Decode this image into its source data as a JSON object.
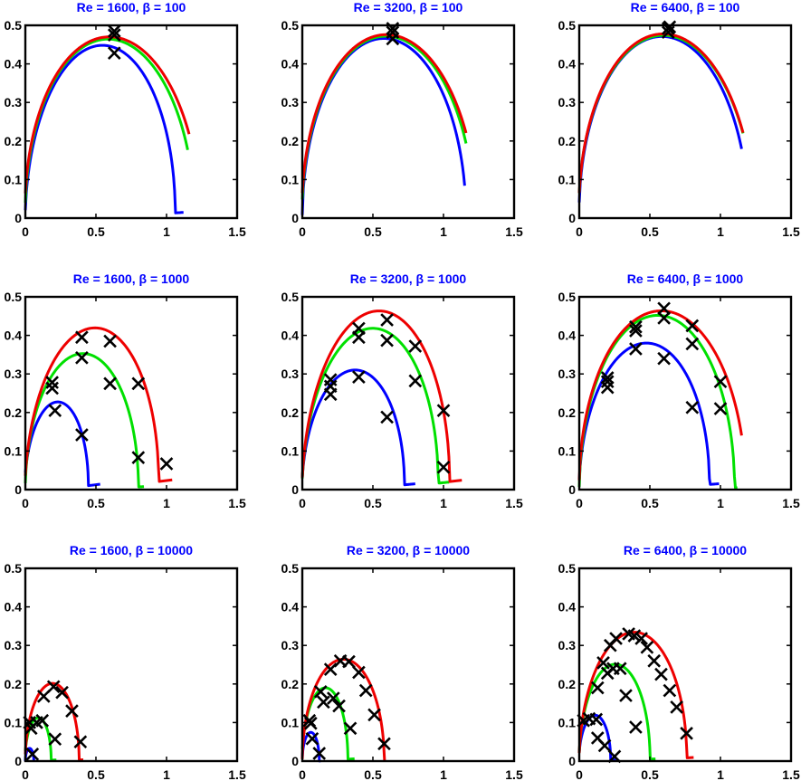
{
  "figure": {
    "colors": {
      "blue": "#0000ff",
      "green": "#00e000",
      "red": "#ee0000",
      "title": "#0000ff",
      "marker": "#000000"
    },
    "x_ticks": [
      "0",
      "0.5",
      "1",
      "1.5"
    ],
    "y_ticks": [
      "0",
      "0.1",
      "0.2",
      "0.3",
      "0.4",
      "0.5"
    ]
  },
  "chart_data": [
    {
      "type": "line",
      "title": "Re = 1600, β = 100",
      "xlim": [
        0,
        1.5
      ],
      "ylim": [
        0,
        0.5
      ],
      "grid": false,
      "series": [
        {
          "color": "blue",
          "peak_x": 0.53,
          "peak_y": 0.437,
          "root": 1.12
        },
        {
          "color": "green",
          "peak_x": 0.6,
          "peak_y": 0.475,
          "root": 1.15
        },
        {
          "color": "red",
          "peak_x": 0.62,
          "peak_y": 0.488,
          "root": 1.16
        }
      ],
      "markers": [
        [
          0.63,
          0.428
        ],
        [
          0.63,
          0.475
        ],
        [
          0.63,
          0.485
        ]
      ]
    },
    {
      "type": "line",
      "title": "Re = 3200, β = 100",
      "xlim": [
        0,
        1.5
      ],
      "ylim": [
        0,
        0.5
      ],
      "grid": false,
      "series": [
        {
          "color": "blue",
          "peak_x": 0.58,
          "peak_y": 0.468,
          "root": 1.15
        },
        {
          "color": "green",
          "peak_x": 0.61,
          "peak_y": 0.485,
          "root": 1.16
        },
        {
          "color": "red",
          "peak_x": 0.62,
          "peak_y": 0.494,
          "root": 1.16
        }
      ],
      "markers": [
        [
          0.64,
          0.465
        ],
        [
          0.64,
          0.482
        ],
        [
          0.64,
          0.492
        ]
      ]
    },
    {
      "type": "line",
      "title": "Re = 6400, β = 100",
      "xlim": [
        0,
        1.5
      ],
      "ylim": [
        0,
        0.5
      ],
      "grid": false,
      "series": [
        {
          "color": "blue",
          "peak_x": 0.6,
          "peak_y": 0.482,
          "root": 1.15
        },
        {
          "color": "green",
          "peak_x": 0.62,
          "peak_y": 0.492,
          "root": 1.16
        },
        {
          "color": "red",
          "peak_x": 0.62,
          "peak_y": 0.496,
          "root": 1.16
        }
      ],
      "markers": [
        [
          0.63,
          0.482
        ],
        [
          0.63,
          0.492
        ],
        [
          0.64,
          0.496
        ]
      ]
    },
    {
      "type": "line",
      "title": "Re = 1600, β = 1000",
      "xlim": [
        0,
        1.5
      ],
      "ylim": [
        0,
        0.5
      ],
      "grid": false,
      "series": [
        {
          "color": "blue",
          "peak_x": 0.22,
          "peak_y": 0.213,
          "root": 0.53
        },
        {
          "color": "green",
          "peak_x": 0.4,
          "peak_y": 0.345,
          "root": 0.84
        },
        {
          "color": "red",
          "peak_x": 0.47,
          "peak_y": 0.402,
          "root": 1.04
        }
      ],
      "markers": [
        [
          0.19,
          0.263
        ],
        [
          0.19,
          0.278
        ],
        [
          0.21,
          0.205
        ],
        [
          0.4,
          0.395
        ],
        [
          0.4,
          0.342
        ],
        [
          0.4,
          0.142
        ],
        [
          0.6,
          0.385
        ],
        [
          0.6,
          0.275
        ],
        [
          0.8,
          0.275
        ],
        [
          0.8,
          0.083
        ],
        [
          1.0,
          0.067
        ]
      ]
    },
    {
      "type": "line",
      "title": "Re = 3200, β = 1000",
      "xlim": [
        0,
        1.5
      ],
      "ylim": [
        0,
        0.5
      ],
      "grid": false,
      "series": [
        {
          "color": "blue",
          "peak_x": 0.36,
          "peak_y": 0.297,
          "root": 0.8
        },
        {
          "color": "green",
          "peak_x": 0.48,
          "peak_y": 0.404,
          "root": 1.04
        },
        {
          "color": "red",
          "peak_x": 0.52,
          "peak_y": 0.447,
          "root": 1.13
        }
      ],
      "markers": [
        [
          0.2,
          0.285
        ],
        [
          0.2,
          0.268
        ],
        [
          0.2,
          0.247
        ],
        [
          0.4,
          0.418
        ],
        [
          0.4,
          0.395
        ],
        [
          0.4,
          0.292
        ],
        [
          0.6,
          0.44
        ],
        [
          0.6,
          0.387
        ],
        [
          0.6,
          0.188
        ],
        [
          0.8,
          0.372
        ],
        [
          0.8,
          0.282
        ],
        [
          1.0,
          0.205
        ],
        [
          1.0,
          0.058
        ]
      ]
    },
    {
      "type": "line",
      "title": "Re = 6400, β = 1000",
      "xlim": [
        0,
        1.5
      ],
      "ylim": [
        0,
        0.5
      ],
      "grid": false,
      "series": [
        {
          "color": "blue",
          "peak_x": 0.46,
          "peak_y": 0.368,
          "root": 0.99
        },
        {
          "color": "green",
          "peak_x": 0.55,
          "peak_y": 0.448,
          "root": 1.12
        },
        {
          "color": "red",
          "peak_x": 0.59,
          "peak_y": 0.47,
          "root": 1.15
        }
      ],
      "markers": [
        [
          0.2,
          0.29
        ],
        [
          0.2,
          0.28
        ],
        [
          0.2,
          0.265
        ],
        [
          0.4,
          0.422
        ],
        [
          0.4,
          0.412
        ],
        [
          0.4,
          0.365
        ],
        [
          0.6,
          0.47
        ],
        [
          0.6,
          0.445
        ],
        [
          0.6,
          0.34
        ],
        [
          0.8,
          0.425
        ],
        [
          0.8,
          0.378
        ],
        [
          0.8,
          0.213
        ],
        [
          1.0,
          0.28
        ],
        [
          1.0,
          0.21
        ]
      ]
    },
    {
      "type": "line",
      "title": "Re = 1600, β = 10000",
      "xlim": [
        0,
        1.5
      ],
      "ylim": [
        0,
        0.5
      ],
      "grid": false,
      "series": [
        {
          "color": "blue",
          "peak_x": 0.03,
          "peak_y": 0.033,
          "root": 0.06
        },
        {
          "color": "green",
          "peak_x": 0.09,
          "peak_y": 0.105,
          "root": 0.22
        },
        {
          "color": "red",
          "peak_x": 0.19,
          "peak_y": 0.195,
          "root": 0.41
        }
      ],
      "markers": [
        [
          0.03,
          0.1
        ],
        [
          0.04,
          0.085
        ],
        [
          0.05,
          0.018
        ],
        [
          0.08,
          0.1
        ],
        [
          0.12,
          0.105
        ],
        [
          0.13,
          0.168
        ],
        [
          0.2,
          0.193
        ],
        [
          0.21,
          0.057
        ],
        [
          0.26,
          0.178
        ],
        [
          0.33,
          0.13
        ],
        [
          0.39,
          0.05
        ]
      ]
    },
    {
      "type": "line",
      "title": "Re = 3200, β = 10000",
      "xlim": [
        0,
        1.5
      ],
      "ylim": [
        0,
        0.5
      ],
      "grid": false,
      "series": [
        {
          "color": "blue",
          "peak_x": 0.06,
          "peak_y": 0.072,
          "root": 0.13
        },
        {
          "color": "green",
          "peak_x": 0.16,
          "peak_y": 0.18,
          "root": 0.37
        },
        {
          "color": "red",
          "peak_x": 0.29,
          "peak_y": 0.262,
          "root": 0.59
        }
      ],
      "markers": [
        [
          0.05,
          0.105
        ],
        [
          0.06,
          0.098
        ],
        [
          0.07,
          0.058
        ],
        [
          0.12,
          0.02
        ],
        [
          0.13,
          0.18
        ],
        [
          0.15,
          0.153
        ],
        [
          0.2,
          0.238
        ],
        [
          0.22,
          0.163
        ],
        [
          0.26,
          0.143
        ],
        [
          0.27,
          0.26
        ],
        [
          0.33,
          0.258
        ],
        [
          0.34,
          0.085
        ],
        [
          0.4,
          0.23
        ],
        [
          0.45,
          0.183
        ],
        [
          0.51,
          0.12
        ],
        [
          0.58,
          0.045
        ]
      ]
    },
    {
      "type": "line",
      "title": "Re = 6400, β = 10000",
      "xlim": [
        0,
        1.5
      ],
      "ylim": [
        0,
        0.5
      ],
      "grid": false,
      "series": [
        {
          "color": "blue",
          "peak_x": 0.11,
          "peak_y": 0.112,
          "root": 0.26
        },
        {
          "color": "green",
          "peak_x": 0.25,
          "peak_y": 0.243,
          "root": 0.54
        },
        {
          "color": "red",
          "peak_x": 0.38,
          "peak_y": 0.325,
          "root": 0.81
        }
      ],
      "markers": [
        [
          0.03,
          0.105
        ],
        [
          0.07,
          0.11
        ],
        [
          0.12,
          0.108
        ],
        [
          0.13,
          0.06
        ],
        [
          0.18,
          0.04
        ],
        [
          0.25,
          0.012
        ],
        [
          0.13,
          0.19
        ],
        [
          0.17,
          0.255
        ],
        [
          0.2,
          0.228
        ],
        [
          0.24,
          0.24
        ],
        [
          0.22,
          0.3
        ],
        [
          0.29,
          0.24
        ],
        [
          0.33,
          0.17
        ],
        [
          0.4,
          0.088
        ],
        [
          0.26,
          0.318
        ],
        [
          0.35,
          0.33
        ],
        [
          0.39,
          0.325
        ],
        [
          0.44,
          0.318
        ],
        [
          0.48,
          0.295
        ],
        [
          0.53,
          0.26
        ],
        [
          0.58,
          0.225
        ],
        [
          0.64,
          0.183
        ],
        [
          0.69,
          0.14
        ],
        [
          0.76,
          0.072
        ]
      ]
    }
  ]
}
